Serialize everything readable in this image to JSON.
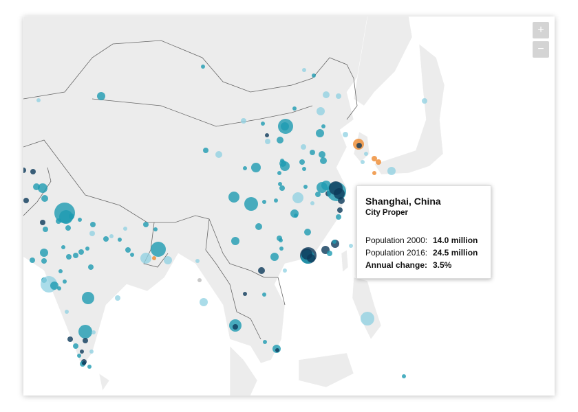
{
  "controls": {
    "zoom_in": "+",
    "zoom_out": "−"
  },
  "tooltip": {
    "title": "Shanghai, China",
    "subtitle": "City Proper",
    "rows": [
      [
        "Population 2000:",
        "14.0 million"
      ],
      [
        "Population 2016:",
        "24.5 million"
      ],
      [
        "Annual change:",
        "3.5%"
      ]
    ]
  }
}
